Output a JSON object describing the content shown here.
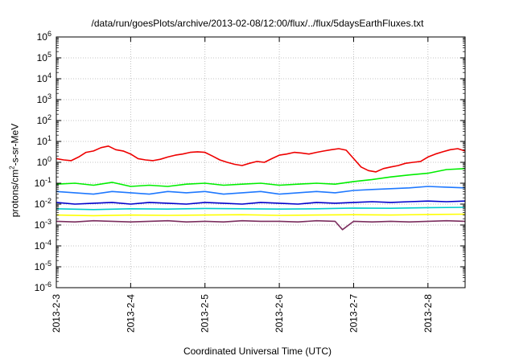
{
  "chart_data": {
    "type": "line",
    "title": "/data/run/goesPlots/archive/2013-02-08/12:00/flux/../flux/5daysEarthFluxes.txt",
    "xlabel": "Coordinated Universal Time (UTC)",
    "ylabel": {
      "base": "protons/cm",
      "sup": "2",
      "rest": "-s-sr-MeV"
    },
    "yscale": "log",
    "ylim": [
      1e-06,
      1000000.0
    ],
    "yticks": [
      {
        "value": 1e-06,
        "exp": "-6"
      },
      {
        "value": 1e-05,
        "exp": "-5"
      },
      {
        "value": 0.0001,
        "exp": "-4"
      },
      {
        "value": 0.001,
        "exp": "-3"
      },
      {
        "value": 0.01,
        "exp": "-2"
      },
      {
        "value": 0.1,
        "exp": "-1"
      },
      {
        "value": 1,
        "exp": "0"
      },
      {
        "value": 10,
        "exp": "1"
      },
      {
        "value": 100,
        "exp": "2"
      },
      {
        "value": 1000,
        "exp": "3"
      },
      {
        "value": 10000,
        "exp": "4"
      },
      {
        "value": 100000,
        "exp": "5"
      },
      {
        "value": 1000000,
        "exp": "6"
      }
    ],
    "ytick_base": "10",
    "xlim": [
      "2013-02-03",
      "2013-02-08T12:00"
    ],
    "xlim_days": [
      0,
      5.5
    ],
    "xticks": [
      {
        "label": "2013-2-3",
        "day": 0
      },
      {
        "label": "2013-2-4",
        "day": 1
      },
      {
        "label": "2013-2-5",
        "day": 2
      },
      {
        "label": "2013-2-6",
        "day": 3
      },
      {
        "label": "2013-2-7",
        "day": 4
      },
      {
        "label": "2013-2-8",
        "day": 5
      }
    ],
    "grid": true,
    "legend": "none",
    "series": [
      {
        "color": "#7b2d5e",
        "x": [
          0,
          0.25,
          0.5,
          0.75,
          1,
          1.25,
          1.5,
          1.75,
          2,
          2.25,
          2.5,
          2.75,
          3,
          3.25,
          3.5,
          3.75,
          3.85,
          4,
          4.25,
          4.5,
          4.75,
          5,
          5.25,
          5.5
        ],
        "y": [
          0.0015,
          0.0014,
          0.0016,
          0.0015,
          0.0014,
          0.0015,
          0.0016,
          0.0014,
          0.0015,
          0.0014,
          0.0016,
          0.0015,
          0.0015,
          0.0014,
          0.0016,
          0.0015,
          0.0006,
          0.0015,
          0.0014,
          0.0015,
          0.0014,
          0.0015,
          0.0016,
          0.0015
        ]
      },
      {
        "color": "#ffff00",
        "x": [
          0,
          0.5,
          1,
          1.5,
          2,
          2.5,
          3,
          3.5,
          4,
          4.5,
          5,
          5.5
        ],
        "y": [
          0.003,
          0.0028,
          0.003,
          0.0029,
          0.003,
          0.0031,
          0.0029,
          0.003,
          0.0031,
          0.003,
          0.0032,
          0.0033
        ]
      },
      {
        "color": "#00cccc",
        "x": [
          0,
          0.5,
          1,
          1.5,
          2,
          2.5,
          3,
          3.5,
          4,
          4.5,
          5,
          5.5
        ],
        "y": [
          0.006,
          0.0055,
          0.006,
          0.0058,
          0.0062,
          0.006,
          0.0058,
          0.006,
          0.0065,
          0.0063,
          0.0068,
          0.007
        ]
      },
      {
        "color": "#0000cc",
        "x": [
          0,
          0.25,
          0.5,
          0.75,
          1,
          1.25,
          1.5,
          1.75,
          2,
          2.25,
          2.5,
          2.75,
          3,
          3.25,
          3.5,
          3.75,
          4,
          4.25,
          4.5,
          4.75,
          5,
          5.25,
          5.5
        ],
        "y": [
          0.012,
          0.01,
          0.011,
          0.012,
          0.01,
          0.012,
          0.011,
          0.01,
          0.012,
          0.011,
          0.01,
          0.012,
          0.011,
          0.01,
          0.012,
          0.011,
          0.012,
          0.013,
          0.012,
          0.013,
          0.014,
          0.013,
          0.014
        ]
      },
      {
        "color": "#1e78ff",
        "x": [
          0,
          0.25,
          0.5,
          0.75,
          1,
          1.25,
          1.5,
          1.75,
          2,
          2.25,
          2.5,
          2.75,
          3,
          3.25,
          3.5,
          3.75,
          4,
          4.25,
          4.5,
          4.75,
          5,
          5.25,
          5.5
        ],
        "y": [
          0.04,
          0.035,
          0.03,
          0.04,
          0.035,
          0.03,
          0.04,
          0.035,
          0.04,
          0.03,
          0.035,
          0.04,
          0.03,
          0.035,
          0.04,
          0.035,
          0.045,
          0.05,
          0.055,
          0.06,
          0.07,
          0.065,
          0.06
        ]
      },
      {
        "color": "#00ee00",
        "x": [
          0,
          0.25,
          0.5,
          0.75,
          1,
          1.25,
          1.5,
          1.75,
          2,
          2.25,
          2.5,
          2.75,
          3,
          3.25,
          3.5,
          3.75,
          4,
          4.25,
          4.5,
          4.75,
          5,
          5.25,
          5.5
        ],
        "y": [
          0.09,
          0.1,
          0.08,
          0.11,
          0.07,
          0.08,
          0.07,
          0.09,
          0.1,
          0.08,
          0.09,
          0.1,
          0.08,
          0.09,
          0.1,
          0.09,
          0.12,
          0.15,
          0.2,
          0.25,
          0.3,
          0.45,
          0.5
        ]
      },
      {
        "color": "#ee0000",
        "x": [
          0,
          0.1,
          0.2,
          0.3,
          0.4,
          0.5,
          0.6,
          0.7,
          0.8,
          0.9,
          1,
          1.1,
          1.2,
          1.3,
          1.4,
          1.5,
          1.6,
          1.7,
          1.8,
          1.9,
          2,
          2.1,
          2.2,
          2.3,
          2.4,
          2.5,
          2.6,
          2.7,
          2.8,
          2.9,
          3,
          3.1,
          3.2,
          3.3,
          3.4,
          3.5,
          3.6,
          3.7,
          3.8,
          3.9,
          4,
          4.1,
          4.2,
          4.3,
          4.4,
          4.5,
          4.6,
          4.7,
          4.8,
          4.9,
          5,
          5.1,
          5.2,
          5.3,
          5.4,
          5.5
        ],
        "y": [
          1.5,
          1.3,
          1.2,
          1.8,
          3,
          3.5,
          5,
          6,
          4,
          3.5,
          2.5,
          1.5,
          1.3,
          1.2,
          1.4,
          1.8,
          2.2,
          2.5,
          3,
          3.2,
          3,
          2,
          1.3,
          1,
          0.8,
          0.7,
          0.9,
          1.1,
          1,
          1.5,
          2.2,
          2.5,
          3,
          2.8,
          2.5,
          3,
          3.5,
          4,
          4.5,
          3.8,
          1.5,
          0.6,
          0.4,
          0.35,
          0.5,
          0.6,
          0.7,
          0.9,
          1,
          1.1,
          1.8,
          2.5,
          3.2,
          4,
          4.5,
          3.5
        ]
      }
    ]
  }
}
